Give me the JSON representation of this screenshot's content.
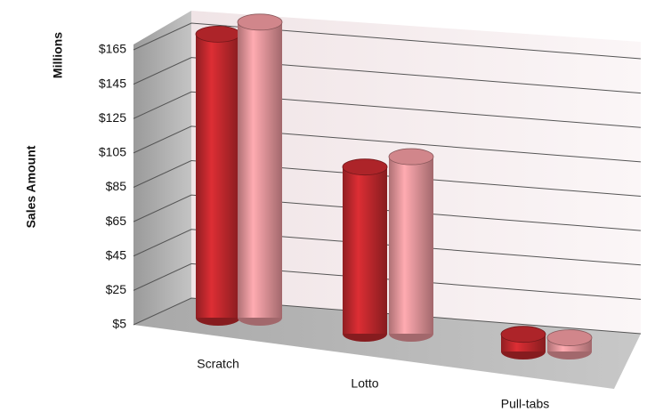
{
  "chart_data": {
    "type": "bar3d",
    "y_label": "Sales Amount",
    "y_unit_label": "Millions",
    "categories": [
      "Scratch",
      "Lotto",
      "Pull-tabs"
    ],
    "series": [
      {
        "color": "#c0282d",
        "values": [
          170,
          102,
          15
        ]
      },
      {
        "color": "#e8959a",
        "values": [
          177,
          108,
          13
        ]
      }
    ],
    "ylim": [
      5,
      185
    ],
    "yticks": [
      {
        "value": 5,
        "label": "$5"
      },
      {
        "value": 25,
        "label": "$25"
      },
      {
        "value": 45,
        "label": "$45"
      },
      {
        "value": 65,
        "label": "$65"
      },
      {
        "value": 85,
        "label": "$85"
      },
      {
        "value": 105,
        "label": "$105"
      },
      {
        "value": 125,
        "label": "$125"
      },
      {
        "value": 145,
        "label": "$145"
      },
      {
        "value": 165,
        "label": "$165"
      }
    ],
    "grid": true
  }
}
